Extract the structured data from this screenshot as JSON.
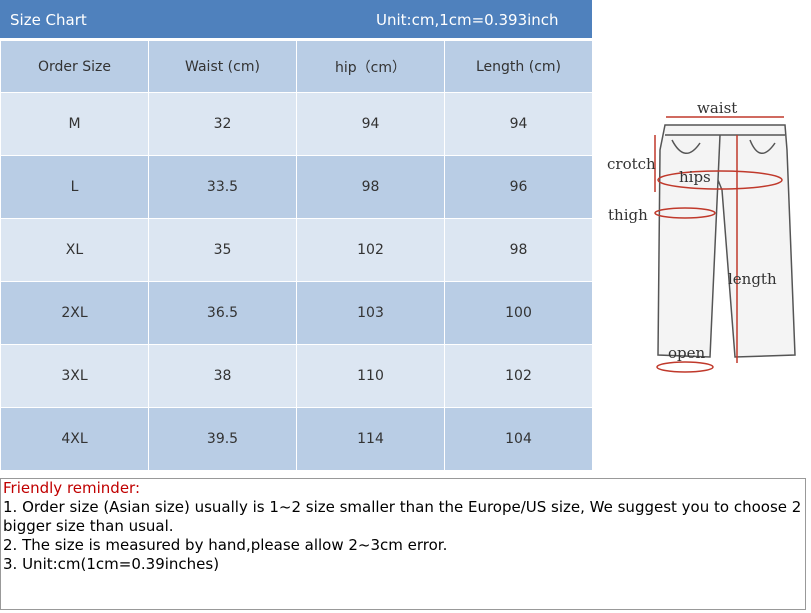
{
  "header": {
    "title": "Size Chart",
    "unit": "Unit:cm,1cm=0.393inch"
  },
  "table": {
    "columns": [
      "Order Size",
      "Waist (cm)",
      "hip（cm）",
      "Length (cm)"
    ],
    "rows": [
      [
        "M",
        "32",
        "94",
        "94"
      ],
      [
        "L",
        "33.5",
        "98",
        "96"
      ],
      [
        "XL",
        "35",
        "102",
        "98"
      ],
      [
        "2XL",
        "36.5",
        "103",
        "100"
      ],
      [
        "3XL",
        "38",
        "110",
        "102"
      ],
      [
        "4XL",
        "39.5",
        "114",
        "104"
      ]
    ]
  },
  "diagram": {
    "labels": [
      "waist",
      "crotch",
      "hips",
      "thigh",
      "length",
      "open"
    ]
  },
  "reminder": {
    "title": "Friendly reminder:",
    "lines": [
      "1. Order size (Asian size) usually is 1~2 size smaller than the Europe/US size, We suggest you to choose 2 bigger size than usual.",
      "2. The size is measured by hand,please allow 2~3cm error.",
      "3. Unit:cm(1cm=0.39inches)"
    ]
  }
}
